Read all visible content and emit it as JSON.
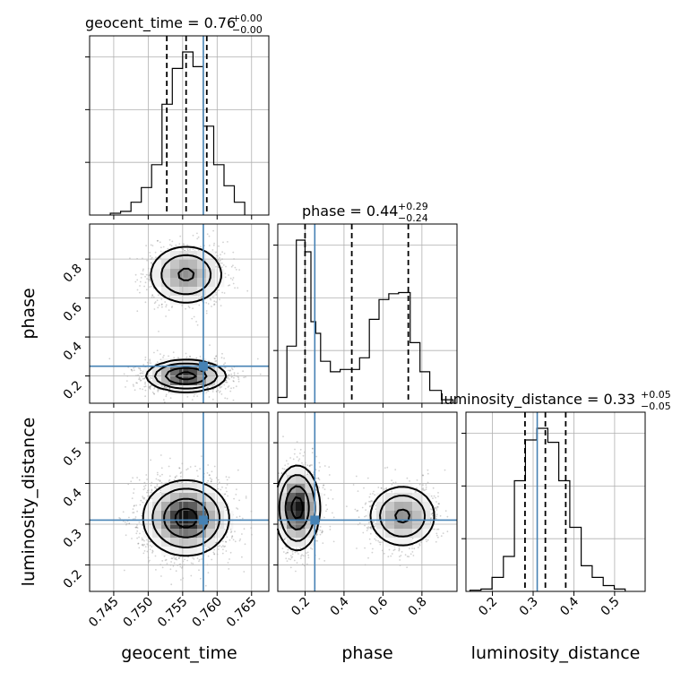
{
  "chart_data": {
    "type": "corner",
    "parameters": [
      "geocent_time",
      "phase",
      "luminosity_distance"
    ],
    "truth_color": "#4682b4",
    "titles": [
      {
        "name": "geocent_time",
        "text": "geocent_time = 0.76",
        "sup": "+0.00",
        "sub": "−0.00"
      },
      {
        "name": "phase",
        "text": "phase = 0.44",
        "sup": "+0.29",
        "sub": "−0.24"
      },
      {
        "name": "luminosity_distance",
        "text": "luminosity_distance = 0.33",
        "sup": "+0.05",
        "sub": "−0.05"
      }
    ],
    "axes": {
      "geocent_time": {
        "label": "geocent_time",
        "range": [
          0.7415,
          0.7675
        ],
        "ticks": [
          0.745,
          0.75,
          0.755,
          0.76,
          0.765
        ],
        "tick_labels": [
          "0.745",
          "0.750",
          "0.755",
          "0.760",
          "0.765"
        ]
      },
      "phase": {
        "label": "phase",
        "range": [
          0.06,
          0.98
        ],
        "ticks": [
          0.2,
          0.4,
          0.6,
          0.8
        ],
        "tick_labels": [
          "0.2",
          "0.4",
          "0.6",
          "0.8"
        ]
      },
      "luminosity_distance": {
        "label": "luminosity_distance",
        "range": [
          0.135,
          0.575
        ],
        "ticks": [
          0.2,
          0.3,
          0.4,
          0.5
        ],
        "tick_labels": [
          "0.2",
          "0.3",
          "0.4",
          "0.5"
        ]
      }
    },
    "truths": {
      "geocent_time": 0.758,
      "phase": 0.25,
      "luminosity_distance": 0.31
    },
    "quantiles": {
      "geocent_time": [
        0.7527,
        0.7555,
        0.7585
      ],
      "phase": [
        0.2,
        0.44,
        0.73
      ],
      "luminosity_distance": [
        0.28,
        0.33,
        0.38
      ]
    },
    "histograms": {
      "geocent_time": {
        "edges": [
          0.7445,
          0.746,
          0.7475,
          0.749,
          0.7505,
          0.752,
          0.7535,
          0.755,
          0.7565,
          0.758,
          0.7595,
          0.761,
          0.7625,
          0.764
        ],
        "counts": [
          2,
          4,
          14,
          30,
          55,
          121,
          160,
          178,
          162,
          97,
          55,
          32,
          14
        ]
      },
      "phase": {
        "edges": [
          0.06,
          0.107,
          0.155,
          0.2,
          0.23,
          0.255,
          0.28,
          0.33,
          0.38,
          0.43,
          0.48,
          0.53,
          0.58,
          0.63,
          0.68,
          0.74,
          0.79,
          0.84,
          0.9,
          0.96
        ],
        "counts": [
          5,
          49,
          140,
          130,
          70,
          60,
          36,
          27,
          29,
          29,
          39,
          72,
          89,
          94,
          95,
          52,
          27,
          11,
          3
        ]
      },
      "luminosity_distance": {
        "edges": [
          0.145,
          0.172,
          0.199,
          0.227,
          0.254,
          0.281,
          0.309,
          0.336,
          0.363,
          0.39,
          0.418,
          0.445,
          0.472,
          0.499,
          0.526
        ],
        "counts": [
          1,
          2,
          12,
          30,
          95,
          130,
          140,
          128,
          95,
          55,
          22,
          12,
          5,
          2
        ]
      }
    },
    "density_2d": [
      {
        "x": "geocent_time",
        "y": "phase",
        "modes": [
          {
            "x": 0.7555,
            "y": 0.2,
            "sx": 0.0025,
            "sy": 0.035,
            "w": 1.0
          },
          {
            "x": 0.7555,
            "y": 0.72,
            "sx": 0.0025,
            "sy": 0.07,
            "w": 0.55
          }
        ],
        "contour_levels": [
          0.85,
          0.5,
          0.2,
          0.07
        ]
      },
      {
        "x": "geocent_time",
        "y": "luminosity_distance",
        "modes": [
          {
            "x": 0.7555,
            "y": 0.315,
            "sx": 0.0027,
            "sy": 0.04,
            "w": 1.0
          }
        ],
        "contour_levels": [
          0.85,
          0.5,
          0.2,
          0.07
        ]
      },
      {
        "x": "phase",
        "y": "luminosity_distance",
        "modes": [
          {
            "x": 0.16,
            "y": 0.34,
            "sx": 0.05,
            "sy": 0.045,
            "w": 1.0
          },
          {
            "x": 0.7,
            "y": 0.32,
            "sx": 0.08,
            "sy": 0.035,
            "w": 0.55
          }
        ],
        "contour_levels": [
          0.85,
          0.5,
          0.2,
          0.07
        ]
      }
    ],
    "grid": true
  }
}
